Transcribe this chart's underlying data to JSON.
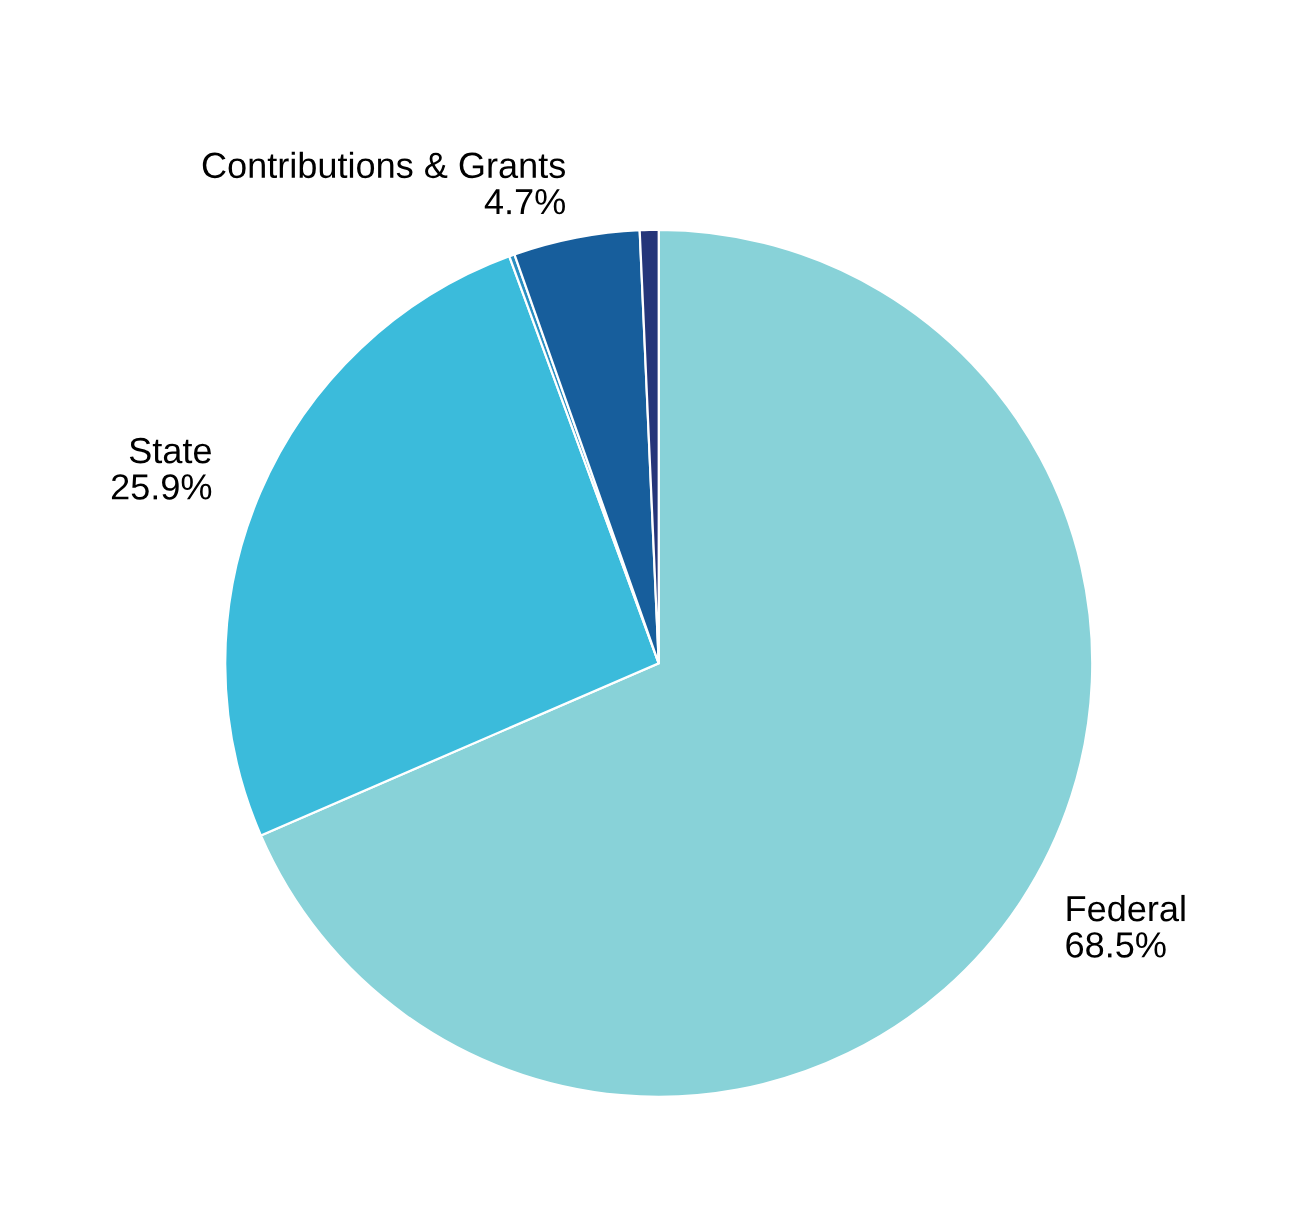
{
  "chart_data": {
    "type": "pie",
    "categories": [
      "Federal",
      "State",
      null,
      "Contributions & Grants",
      null
    ],
    "values": [
      68.5,
      25.9,
      0.2,
      4.7,
      0.7
    ],
    "value_labels": [
      "68.5%",
      "25.9%",
      null,
      "4.7%",
      null
    ],
    "colors": [
      "#88d2d8",
      "#3bbbdb",
      "#2b8fc2",
      "#175e9c",
      "#253579"
    ]
  }
}
